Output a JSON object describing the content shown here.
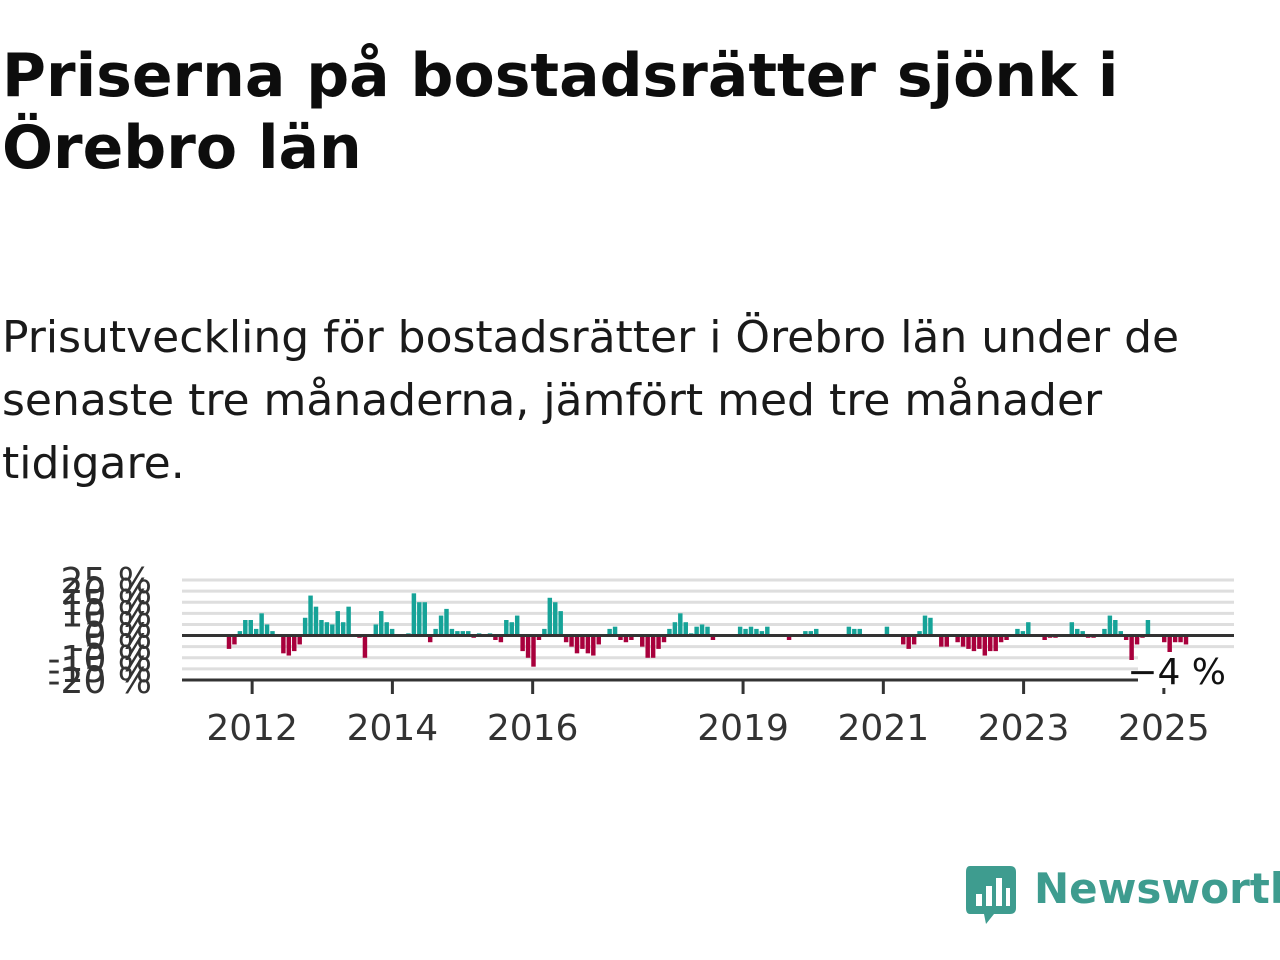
{
  "title": "Priserna på bostadsrätter sjönk i Örebro län",
  "subtitle": "Prisutveckling för bostadsrätter i Örebro län under de senaste tre månaderna, jämfört med tre månader tidigare.",
  "brand": {
    "name": "Newsworthy",
    "color": "#3e9c8f",
    "icon": "newsworthy-chart-icon"
  },
  "colors": {
    "positive": "#16a398",
    "negative": "#a8003c",
    "grid": "#dedede",
    "zero": "#333333"
  },
  "chart_data": {
    "type": "bar",
    "title": "",
    "xlabel": "",
    "ylabel": "",
    "ylim": [
      -20,
      25
    ],
    "y_ticks": [
      {
        "value": 25,
        "label": "25 %"
      },
      {
        "value": 20,
        "label": "20 %"
      },
      {
        "value": 15,
        "label": "15 %"
      },
      {
        "value": 10,
        "label": "10 %"
      },
      {
        "value": 5,
        "label": "5 %"
      },
      {
        "value": 0,
        "label": "0 %"
      },
      {
        "value": -5,
        "label": "-5 %"
      },
      {
        "value": -10,
        "label": "-10 %"
      },
      {
        "value": -15,
        "label": "-15 %"
      },
      {
        "value": -20,
        "label": "-20 %"
      }
    ],
    "x_ticks": [
      {
        "value": 2012,
        "label": "2012"
      },
      {
        "value": 2014,
        "label": "2014"
      },
      {
        "value": 2016,
        "label": "2016"
      },
      {
        "value": 2019,
        "label": "2019"
      },
      {
        "value": 2021,
        "label": "2021"
      },
      {
        "value": 2023,
        "label": "2023"
      },
      {
        "value": 2025,
        "label": "2025"
      }
    ],
    "x_start": 2011.0,
    "x_end": 2026.0,
    "last_value_label": "−4 %",
    "series": [
      {
        "values": [
          -6,
          -4,
          2,
          7,
          7,
          3,
          10,
          5,
          2,
          0,
          -8,
          -9,
          -7,
          -4,
          8,
          18,
          13,
          7,
          6,
          5,
          11,
          6,
          13,
          0,
          -1,
          -10,
          0,
          5,
          11,
          6,
          3,
          0,
          0,
          1,
          19,
          15,
          15,
          -3,
          3,
          9,
          12,
          3,
          2,
          2,
          2,
          -1,
          1,
          0,
          1,
          -2,
          -3,
          7,
          6,
          9,
          -7,
          -10,
          -14,
          -2,
          3,
          17,
          15,
          11,
          -3,
          -5,
          -8,
          -6,
          -8,
          -9,
          -4,
          0,
          3,
          4,
          -2,
          -3,
          -2,
          0,
          -5,
          -10,
          -10,
          -6,
          -3,
          3,
          6,
          10,
          6,
          1,
          4,
          5,
          4,
          -2,
          0,
          0,
          0,
          0,
          4,
          3,
          4,
          3,
          2,
          4,
          0,
          0,
          0,
          -2,
          0,
          0,
          2,
          2,
          3,
          0,
          0,
          0,
          0,
          0,
          4,
          3,
          3,
          0,
          0,
          0,
          0,
          4,
          0,
          0,
          -4,
          -6,
          -4,
          2,
          9,
          8,
          0,
          -5,
          -5,
          0,
          -3,
          -5,
          -6,
          -7,
          -6,
          -9,
          -7,
          -7,
          -3,
          -2,
          0,
          3,
          2,
          6,
          0,
          0,
          -2,
          -1,
          -1,
          0,
          0,
          6,
          3,
          2,
          -1,
          -1,
          0,
          3,
          9,
          7,
          2,
          -2,
          -11,
          -4,
          -1,
          7,
          0,
          0,
          -3,
          -8,
          -3,
          -3,
          -4
        ]
      }
    ]
  }
}
